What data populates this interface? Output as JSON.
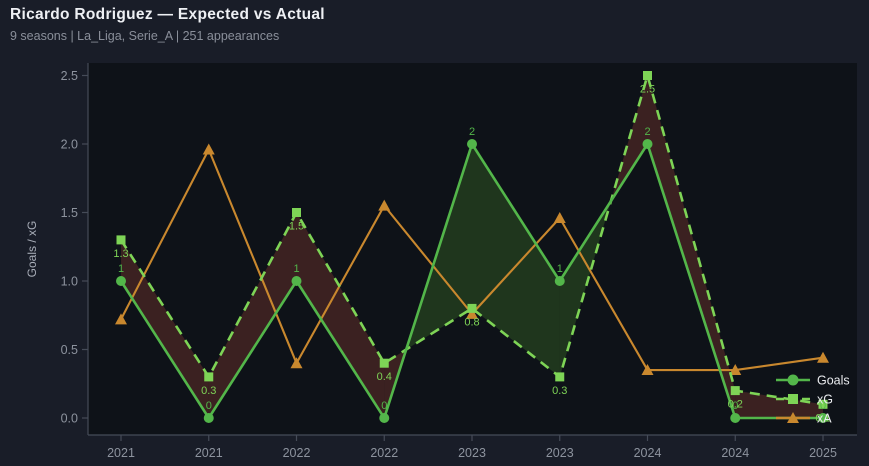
{
  "chart_data": {
    "type": "line",
    "title": "Ricardo Rodriguez — Expected vs Actual",
    "subtitle": "9 seasons | La_Liga, Serie_A | 251 appearances",
    "xlabel": "",
    "ylabel": "Goals / xG",
    "ylim": [
      -0.12,
      2.6
    ],
    "grid": false,
    "y_ticks": [
      0,
      0.5,
      1,
      1.5,
      2,
      2.5
    ],
    "y_tick_labels": [
      "0.0",
      "0.5",
      "1.0",
      "1.5",
      "2.0",
      "2.5"
    ],
    "categories": [
      "2021",
      "2021",
      "2022",
      "2022",
      "2023",
      "2023",
      "2024",
      "2024",
      "2025"
    ],
    "series": [
      {
        "name": "Goals",
        "style": "solid",
        "marker": "circle",
        "color": "#53b64a",
        "values": [
          1,
          0,
          1,
          0,
          2,
          1,
          2,
          0,
          0
        ],
        "labels": [
          "1",
          "0",
          "1",
          "0",
          "2",
          "1",
          "2",
          "0",
          "0"
        ],
        "label_pos": "above"
      },
      {
        "name": "xG",
        "style": "dashed",
        "marker": "square",
        "color": "#7ed456",
        "values": [
          1.3,
          0.3,
          1.5,
          0.4,
          0.8,
          0.3,
          2.5,
          0.2,
          0.1
        ],
        "labels": [
          "1.3",
          "0.3",
          "1.5",
          "0.4",
          "0.8",
          "0.3",
          "2.5",
          "0.2",
          "0.1"
        ],
        "label_pos": "below"
      },
      {
        "name": "xA",
        "style": "solid",
        "marker": "triangle",
        "color": "#c9882e",
        "values": [
          0.72,
          1.96,
          0.4,
          1.55,
          0.76,
          1.46,
          0.35,
          0.35,
          0.44
        ],
        "labels": [],
        "label_pos": "none"
      }
    ],
    "fill_between": {
      "series_top_when": "xG",
      "above_color": "#7a3730",
      "above_opacity": 0.42,
      "below_color": "#4a8a2c",
      "below_opacity": 0.3
    },
    "legend": {
      "position": "lower right",
      "entries": [
        "Goals",
        "xG",
        "xA"
      ]
    }
  },
  "colors": {
    "page_bg": "#191d28",
    "plot_bg": "#0e1218",
    "spine": "#454b58",
    "tick_text": "#8d939e",
    "axis_label": "#a8adb8",
    "legend_text": "#e9ebee"
  }
}
